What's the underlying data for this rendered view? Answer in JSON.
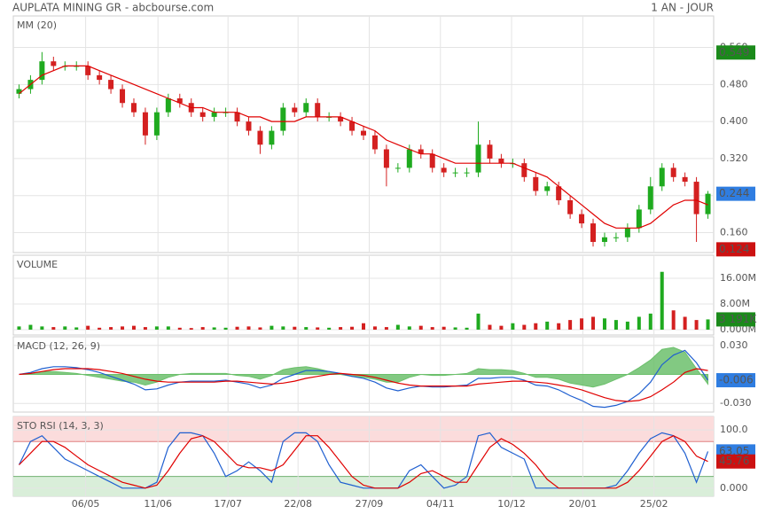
{
  "header": {
    "title": "AUPLATA MINING GR - abcbourse.com",
    "period": "1 AN - JOUR"
  },
  "chart_data": [
    {
      "type": "candlestick",
      "title": "MM (20)",
      "title_color": "#d40000",
      "xlim": [
        -0.5,
        60.5
      ],
      "ylim": [
        0.117,
        0.628
      ],
      "yticks": [
        {
          "value": 0.16,
          "label": "0.160"
        },
        {
          "value": 0.24,
          "label": "0.240"
        },
        {
          "value": 0.32,
          "label": "0.320"
        },
        {
          "value": 0.4,
          "label": "0.400"
        },
        {
          "value": 0.48,
          "label": "0.480"
        },
        {
          "value": 0.56,
          "label": "0.560"
        }
      ],
      "up_color": "#1faa1f",
      "down_color": "#d42020",
      "open": [
        0.46,
        0.47,
        0.49,
        0.53,
        0.52,
        0.52,
        0.52,
        0.5,
        0.49,
        0.47,
        0.44,
        0.42,
        0.37,
        0.42,
        0.45,
        0.44,
        0.42,
        0.41,
        0.42,
        0.42,
        0.4,
        0.38,
        0.35,
        0.38,
        0.43,
        0.42,
        0.44,
        0.41,
        0.41,
        0.4,
        0.38,
        0.37,
        0.34,
        0.3,
        0.3,
        0.34,
        0.33,
        0.3,
        0.29,
        0.29,
        0.29,
        0.35,
        0.32,
        0.31,
        0.31,
        0.28,
        0.25,
        0.26,
        0.23,
        0.2,
        0.18,
        0.14,
        0.15,
        0.15,
        0.17,
        0.21,
        0.26,
        0.3,
        0.28,
        0.27,
        0.2
      ],
      "high": [
        0.48,
        0.5,
        0.55,
        0.54,
        0.53,
        0.53,
        0.53,
        0.51,
        0.5,
        0.48,
        0.45,
        0.43,
        0.43,
        0.46,
        0.46,
        0.45,
        0.43,
        0.43,
        0.43,
        0.43,
        0.41,
        0.39,
        0.39,
        0.44,
        0.44,
        0.45,
        0.45,
        0.42,
        0.42,
        0.41,
        0.39,
        0.38,
        0.35,
        0.31,
        0.35,
        0.35,
        0.34,
        0.31,
        0.3,
        0.3,
        0.4,
        0.36,
        0.33,
        0.32,
        0.32,
        0.29,
        0.27,
        0.27,
        0.24,
        0.21,
        0.19,
        0.16,
        0.16,
        0.18,
        0.22,
        0.28,
        0.31,
        0.31,
        0.29,
        0.28,
        0.25
      ],
      "low": [
        0.45,
        0.46,
        0.48,
        0.51,
        0.51,
        0.51,
        0.49,
        0.48,
        0.46,
        0.43,
        0.41,
        0.35,
        0.36,
        0.41,
        0.43,
        0.41,
        0.4,
        0.4,
        0.41,
        0.39,
        0.37,
        0.33,
        0.34,
        0.37,
        0.41,
        0.41,
        0.4,
        0.4,
        0.39,
        0.37,
        0.36,
        0.33,
        0.26,
        0.29,
        0.29,
        0.32,
        0.29,
        0.28,
        0.28,
        0.28,
        0.28,
        0.31,
        0.3,
        0.3,
        0.27,
        0.24,
        0.24,
        0.22,
        0.19,
        0.17,
        0.13,
        0.13,
        0.14,
        0.14,
        0.16,
        0.2,
        0.25,
        0.27,
        0.26,
        0.14,
        0.19
      ],
      "close": [
        0.47,
        0.49,
        0.53,
        0.52,
        0.52,
        0.52,
        0.5,
        0.49,
        0.47,
        0.44,
        0.42,
        0.37,
        0.42,
        0.45,
        0.44,
        0.42,
        0.41,
        0.42,
        0.42,
        0.4,
        0.38,
        0.35,
        0.38,
        0.43,
        0.42,
        0.44,
        0.41,
        0.41,
        0.4,
        0.38,
        0.37,
        0.34,
        0.3,
        0.3,
        0.34,
        0.33,
        0.3,
        0.29,
        0.29,
        0.29,
        0.35,
        0.32,
        0.31,
        0.31,
        0.28,
        0.25,
        0.26,
        0.23,
        0.2,
        0.18,
        0.14,
        0.15,
        0.15,
        0.17,
        0.21,
        0.26,
        0.3,
        0.28,
        0.27,
        0.2,
        0.244
      ],
      "series": [
        {
          "color": "#e00000",
          "values": [
            0.46,
            0.48,
            0.5,
            0.51,
            0.52,
            0.52,
            0.52,
            0.51,
            0.5,
            0.49,
            0.48,
            0.47,
            0.46,
            0.45,
            0.44,
            0.43,
            0.43,
            0.42,
            0.42,
            0.42,
            0.41,
            0.41,
            0.4,
            0.4,
            0.4,
            0.41,
            0.41,
            0.41,
            0.41,
            0.4,
            0.39,
            0.38,
            0.36,
            0.35,
            0.34,
            0.33,
            0.33,
            0.32,
            0.31,
            0.31,
            0.31,
            0.31,
            0.31,
            0.31,
            0.3,
            0.29,
            0.28,
            0.26,
            0.24,
            0.22,
            0.2,
            0.18,
            0.17,
            0.17,
            0.17,
            0.18,
            0.2,
            0.22,
            0.23,
            0.23,
            0.22
          ]
        }
      ],
      "markers": [
        {
          "value": 0.549,
          "color": "#1a8a1a"
        },
        {
          "value": 0.244,
          "color": "#2f7de1"
        },
        {
          "value": 0.124,
          "color": "#cc1111"
        }
      ]
    },
    {
      "type": "volume",
      "title": "VOLUME",
      "title_color": "#2aa02a",
      "xlim": [
        -0.5,
        60.5
      ],
      "ylim": [
        -1.66,
        23.17
      ],
      "yticks": [
        {
          "value": 0,
          "label": "0.000M"
        },
        {
          "value": 8,
          "label": "8.00M"
        },
        {
          "value": 16,
          "label": "16.00M"
        }
      ],
      "up_color": "#1faa1f",
      "down_color": "#d42020",
      "values": [
        1,
        1.5,
        1,
        0.8,
        1,
        0.7,
        1.2,
        0.6,
        0.8,
        1,
        1.2,
        0.8,
        1,
        1,
        0.6,
        0.5,
        0.8,
        0.7,
        0.6,
        0.9,
        1,
        0.7,
        1.2,
        1,
        0.9,
        0.8,
        0.7,
        0.6,
        0.8,
        0.9,
        2,
        1,
        0.8,
        1.5,
        1,
        1.2,
        0.8,
        0.9,
        0.7,
        0.6,
        5,
        1.5,
        1.2,
        2,
        1.5,
        2,
        2.5,
        2,
        3,
        3.5,
        4,
        3.5,
        3,
        2.5,
        4,
        5,
        18,
        6,
        4,
        3,
        3.191
      ],
      "markers": [
        {
          "value": 3.191,
          "label": "3 191K",
          "color": "#1a8a1a"
        }
      ]
    },
    {
      "type": "macd",
      "title": "MACD (12, 26, 9)",
      "title_color": "#1f5fbf",
      "xlim": [
        -0.5,
        60.5
      ],
      "ylim": [
        -0.039,
        0.039
      ],
      "yticks": [
        {
          "value": -0.03,
          "label": "-0.030"
        },
        {
          "value": 0.03,
          "label": "0.030"
        }
      ],
      "histogram": {
        "color": "#6cc06c",
        "values": [
          0,
          0.001,
          0.003,
          0.003,
          0.002,
          0.001,
          -0.001,
          -0.003,
          -0.005,
          -0.007,
          -0.008,
          -0.011,
          -0.008,
          -0.003,
          0,
          0.001,
          0.001,
          0.001,
          0.001,
          -0.001,
          -0.002,
          -0.005,
          -0.001,
          0.005,
          0.007,
          0.008,
          0.006,
          0.003,
          0,
          -0.002,
          -0.003,
          -0.005,
          -0.008,
          -0.008,
          -0.003,
          0,
          -0.001,
          -0.001,
          0,
          0.001,
          0.006,
          0.005,
          0.005,
          0.004,
          0.001,
          -0.003,
          -0.003,
          -0.005,
          -0.009,
          -0.011,
          -0.013,
          -0.01,
          -0.005,
          0,
          0.007,
          0.015,
          0.026,
          0.028,
          0.023,
          0.006,
          -0.01
        ]
      },
      "series": [
        {
          "color": "#1f5fd0",
          "values": [
            0,
            0.002,
            0.006,
            0.008,
            0.008,
            0.007,
            0.005,
            0.002,
            -0.002,
            -0.006,
            -0.01,
            -0.016,
            -0.015,
            -0.011,
            -0.008,
            -0.007,
            -0.007,
            -0.007,
            -0.006,
            -0.008,
            -0.01,
            -0.014,
            -0.011,
            -0.004,
            0,
            0.004,
            0.004,
            0.003,
            0.001,
            -0.002,
            -0.004,
            -0.008,
            -0.014,
            -0.017,
            -0.014,
            -0.012,
            -0.013,
            -0.013,
            -0.012,
            -0.011,
            -0.004,
            -0.004,
            -0.003,
            -0.003,
            -0.006,
            -0.011,
            -0.012,
            -0.016,
            -0.022,
            -0.027,
            -0.033,
            -0.034,
            -0.032,
            -0.028,
            -0.02,
            -0.008,
            0.01,
            0.02,
            0.025,
            0.012,
            -0.006
          ]
        },
        {
          "color": "#e00000",
          "values": [
            0,
            0.001,
            0.003,
            0.005,
            0.006,
            0.006,
            0.006,
            0.005,
            0.003,
            0.001,
            -0.002,
            -0.005,
            -0.007,
            -0.008,
            -0.008,
            -0.008,
            -0.008,
            -0.008,
            -0.007,
            -0.007,
            -0.008,
            -0.009,
            -0.01,
            -0.009,
            -0.007,
            -0.004,
            -0.002,
            0,
            0.001,
            0,
            -0.001,
            -0.003,
            -0.006,
            -0.009,
            -0.011,
            -0.012,
            -0.012,
            -0.012,
            -0.012,
            -0.012,
            -0.01,
            -0.009,
            -0.008,
            -0.007,
            -0.007,
            -0.008,
            -0.009,
            -0.011,
            -0.013,
            -0.016,
            -0.02,
            -0.024,
            -0.027,
            -0.028,
            -0.027,
            -0.023,
            -0.016,
            -0.008,
            0.002,
            0.006,
            0.004
          ]
        }
      ],
      "markers": [
        {
          "value": -0.006,
          "color": "#2f7de1"
        }
      ]
    },
    {
      "type": "oscillator",
      "title": "STO RSI (14, 3, 3)",
      "title_color": "#d40000",
      "xlim": [
        -0.5,
        60.5
      ],
      "ylim": [
        -14,
        123
      ],
      "yticks": [
        {
          "value": 0,
          "label": "0.000"
        },
        {
          "value": 100,
          "label": "100.0"
        }
      ],
      "overbought": 80,
      "oversold": 20,
      "series": [
        {
          "color": "#1f5fd0",
          "values": [
            40,
            80,
            90,
            70,
            50,
            40,
            30,
            20,
            10,
            0,
            0,
            0,
            10,
            70,
            95,
            95,
            90,
            60,
            20,
            30,
            45,
            30,
            10,
            80,
            95,
            95,
            80,
            40,
            10,
            5,
            0,
            0,
            0,
            0,
            30,
            40,
            20,
            0,
            5,
            20,
            90,
            95,
            70,
            60,
            50,
            0,
            0,
            0,
            0,
            0,
            0,
            0,
            5,
            30,
            60,
            85,
            95,
            90,
            60,
            10,
            63.05
          ]
        },
        {
          "color": "#e00000",
          "values": [
            40,
            60,
            80,
            80,
            70,
            55,
            40,
            30,
            20,
            10,
            5,
            0,
            5,
            30,
            60,
            85,
            90,
            80,
            60,
            40,
            35,
            35,
            30,
            40,
            65,
            90,
            90,
            70,
            45,
            20,
            5,
            0,
            0,
            0,
            10,
            25,
            30,
            20,
            10,
            10,
            40,
            70,
            85,
            75,
            60,
            40,
            15,
            0,
            0,
            0,
            0,
            0,
            0,
            10,
            30,
            55,
            80,
            90,
            80,
            55,
            45.76
          ]
        }
      ],
      "markers": [
        {
          "value": 63.05,
          "color": "#2f7de1"
        },
        {
          "value": 45.76,
          "color": "#cc1111"
        }
      ],
      "xticks": [
        {
          "value": 5.8,
          "label": "06/05"
        },
        {
          "value": 12.1,
          "label": "11/06"
        },
        {
          "value": 18.2,
          "label": "17/07"
        },
        {
          "value": 24.3,
          "label": "22/08"
        },
        {
          "value": 30.5,
          "label": "27/09"
        },
        {
          "value": 36.7,
          "label": "04/11"
        },
        {
          "value": 42.9,
          "label": "10/12"
        },
        {
          "value": 49.1,
          "label": "20/01"
        },
        {
          "value": 55.3,
          "label": "25/02"
        }
      ]
    }
  ]
}
